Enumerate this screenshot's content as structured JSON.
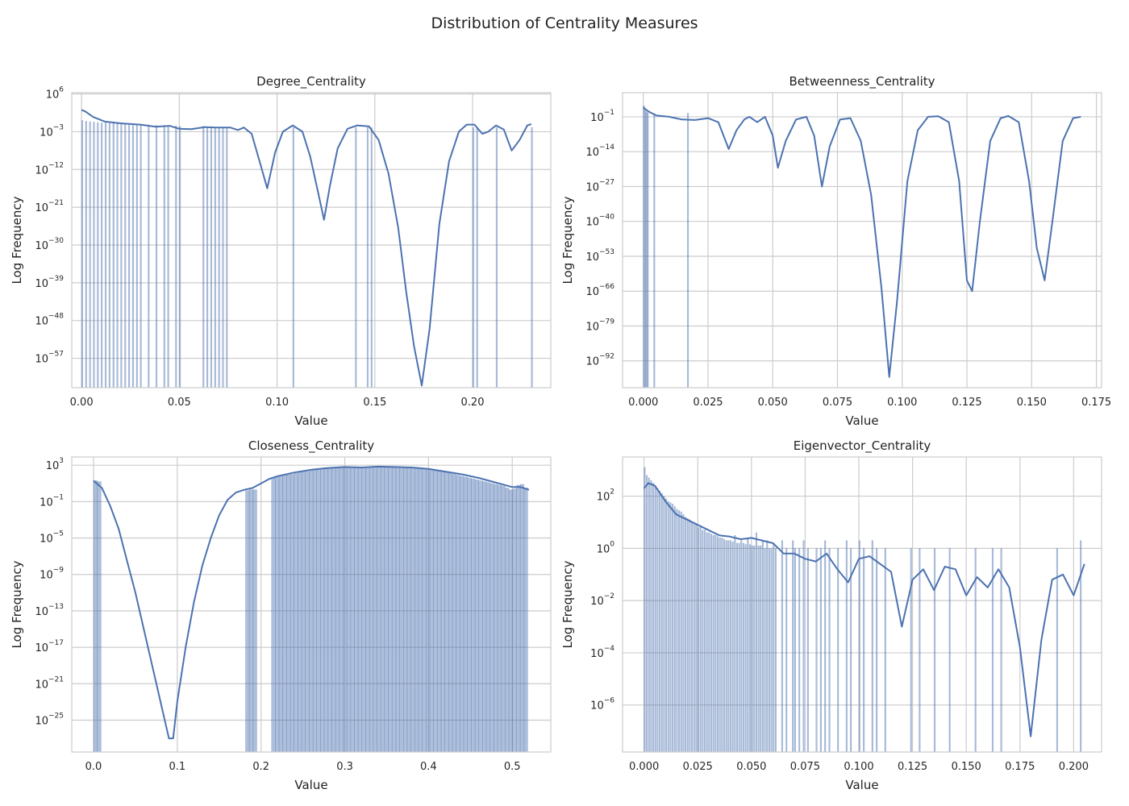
{
  "figure": {
    "title": "Distribution of Centrality Measures"
  },
  "chart_data": [
    {
      "type": "histogram",
      "title": "Degree_Centrality",
      "xlabel": "Value",
      "ylabel": "Log Frequency",
      "yscale": "log",
      "xlim": [
        -0.005,
        0.24
      ],
      "x_ticks": [
        "0.00",
        "0.05",
        "0.10",
        "0.15",
        "0.20"
      ],
      "x_tick_values": [
        0,
        0.05,
        0.1,
        0.15,
        0.2
      ],
      "y_ticks": [
        6,
        -3,
        -12,
        -21,
        -30,
        -39,
        -48,
        -57
      ],
      "ylim_log10": [
        -64,
        6.3
      ],
      "grid": true,
      "bins": {
        "x": [
          0.0,
          0.002,
          0.004,
          0.006,
          0.008,
          0.01,
          0.012,
          0.014,
          0.016,
          0.018,
          0.02,
          0.022,
          0.024,
          0.026,
          0.028,
          0.03,
          0.034,
          0.038,
          0.042,
          0.044,
          0.048,
          0.05,
          0.062,
          0.064,
          0.066,
          0.068,
          0.07,
          0.072,
          0.074,
          0.108,
          0.14,
          0.146,
          0.148,
          0.2,
          0.202,
          0.212,
          0.23
        ],
        "log10_count": [
          -0.3,
          -0.5,
          -0.6,
          -0.7,
          -0.8,
          -0.9,
          -0.9,
          -1,
          -1,
          -1.1,
          -1.1,
          -1.1,
          -1.2,
          -1.2,
          -1.3,
          -1.3,
          -1.4,
          -1.5,
          -1.5,
          -1.6,
          -1.6,
          -1.7,
          -1.7,
          -1.8,
          -1.8,
          -1.9,
          -1.9,
          -1.9,
          -2,
          -2,
          -2,
          -2,
          -2,
          -2,
          -2,
          -2,
          -2
        ]
      },
      "kde": {
        "x": [
          0.0,
          0.002,
          0.006,
          0.012,
          0.02,
          0.03,
          0.038,
          0.045,
          0.05,
          0.056,
          0.063,
          0.069,
          0.076,
          0.08,
          0.083,
          0.087,
          0.091,
          0.095,
          0.099,
          0.103,
          0.108,
          0.113,
          0.117,
          0.121,
          0.124,
          0.127,
          0.131,
          0.136,
          0.141,
          0.147,
          0.152,
          0.157,
          0.162,
          0.166,
          0.17,
          0.174,
          0.178,
          0.183,
          0.188,
          0.193,
          0.197,
          0.201,
          0.205,
          0.208,
          0.212,
          0.216,
          0.22,
          0.224,
          0.228,
          0.23
        ],
        "log10_y": [
          2.2,
          1.8,
          0.5,
          -0.6,
          -1.0,
          -1.3,
          -1.8,
          -1.6,
          -2.3,
          -2.4,
          -1.9,
          -2.0,
          -2.0,
          -2.6,
          -2.0,
          -3.5,
          -10.0,
          -16.5,
          -8.0,
          -3.0,
          -1.5,
          -3.0,
          -9.0,
          -17.5,
          -24.0,
          -16.0,
          -7.0,
          -2.3,
          -1.5,
          -1.7,
          -5.0,
          -13.0,
          -26.0,
          -41.0,
          -54.0,
          -63.5,
          -50.0,
          -25.0,
          -10.0,
          -3.0,
          -1.3,
          -1.3,
          -3.5,
          -3.0,
          -1.5,
          -2.5,
          -7.5,
          -5.0,
          -1.5,
          -1.2
        ]
      }
    },
    {
      "type": "histogram",
      "title": "Betweenness_Centrality",
      "xlabel": "Value",
      "ylabel": "Log Frequency",
      "yscale": "log",
      "xlim": [
        -0.008,
        0.177
      ],
      "x_ticks": [
        "0.000",
        "0.025",
        "0.050",
        "0.075",
        "0.100",
        "0.125",
        "0.150",
        "0.175"
      ],
      "x_tick_values": [
        0,
        0.025,
        0.05,
        0.075,
        0.1,
        0.125,
        0.15,
        0.175
      ],
      "y_ticks": [
        -1,
        -14,
        -27,
        -40,
        -53,
        -66,
        -79,
        -92
      ],
      "ylim_log10": [
        -102,
        8
      ],
      "grid": true,
      "bins": {
        "x": [
          0.0,
          0.0005,
          0.001,
          0.0015,
          0.004,
          0.017
        ],
        "log10_count": [
          3.1,
          1.5,
          0.8,
          0.5,
          0.3,
          0.3
        ]
      },
      "kde": {
        "x": [
          0.0,
          0.002,
          0.005,
          0.01,
          0.015,
          0.02,
          0.025,
          0.029,
          0.033,
          0.036,
          0.039,
          0.041,
          0.044,
          0.047,
          0.05,
          0.052,
          0.055,
          0.059,
          0.063,
          0.066,
          0.069,
          0.072,
          0.076,
          0.08,
          0.084,
          0.088,
          0.092,
          0.095,
          0.098,
          0.102,
          0.106,
          0.11,
          0.114,
          0.118,
          0.122,
          0.125,
          0.127,
          0.13,
          0.134,
          0.138,
          0.141,
          0.145,
          0.149,
          0.152,
          0.155,
          0.158,
          0.162,
          0.166,
          0.169
        ],
        "log10_y": [
          2.5,
          1.0,
          -0.5,
          -1.0,
          -2.0,
          -2.2,
          -1.5,
          -3.0,
          -13.0,
          -6.0,
          -2.0,
          -1.0,
          -3.0,
          -1.0,
          -8.0,
          -20.0,
          -10.0,
          -2.0,
          -1.0,
          -8.0,
          -27.0,
          -12.0,
          -2.0,
          -1.5,
          -10.0,
          -30.0,
          -65.0,
          -98.0,
          -70.0,
          -25.0,
          -6.0,
          -1.0,
          -0.8,
          -3.0,
          -25.0,
          -62.0,
          -66.0,
          -40.0,
          -10.0,
          -1.5,
          -0.7,
          -3.0,
          -25.0,
          -50.0,
          -62.0,
          -40.0,
          -10.0,
          -1.5,
          -1.0
        ]
      }
    },
    {
      "type": "histogram",
      "title": "Closeness_Centrality",
      "xlabel": "Value",
      "ylabel": "Log Frequency",
      "yscale": "log",
      "xlim": [
        -0.026,
        0.546
      ],
      "x_ticks": [
        "0.0",
        "0.1",
        "0.2",
        "0.3",
        "0.4",
        "0.5"
      ],
      "x_tick_values": [
        0,
        0.1,
        0.2,
        0.3,
        0.4,
        0.5
      ],
      "y_ticks": [
        3,
        -1,
        -5,
        -9,
        -13,
        -17,
        -21,
        -25
      ],
      "ylim_log10": [
        -28.5,
        3.9
      ],
      "grid": true,
      "bins": {
        "width": 0.0045,
        "x": [
          0.0,
          0.0045,
          0.1815,
          0.186,
          0.1905,
          0.2125,
          0.217,
          0.2215,
          0.226,
          0.2305,
          0.235,
          0.2395,
          0.244,
          0.2485,
          0.253,
          0.2575,
          0.262,
          0.2665,
          0.271,
          0.2755,
          0.28,
          0.2845,
          0.289,
          0.2935,
          0.298,
          0.3025,
          0.307,
          0.3115,
          0.316,
          0.3205,
          0.325,
          0.3295,
          0.334,
          0.3385,
          0.343,
          0.3475,
          0.352,
          0.3565,
          0.361,
          0.3655,
          0.37,
          0.3745,
          0.379,
          0.3835,
          0.388,
          0.3925,
          0.397,
          0.4015,
          0.406,
          0.4105,
          0.415,
          0.4195,
          0.424,
          0.4285,
          0.433,
          0.4375,
          0.442,
          0.4465,
          0.451,
          0.4555,
          0.46,
          0.4645,
          0.469,
          0.4735,
          0.478,
          0.4825,
          0.487,
          0.4915,
          0.496,
          0.5005,
          0.505,
          0.5095,
          0.514
        ],
        "log10_count": [
          1.3,
          1.2,
          0.2,
          0.3,
          0.3,
          1.6,
          1.7,
          1.8,
          1.9,
          1.95,
          2.0,
          2.1,
          2.2,
          2.25,
          2.3,
          2.4,
          2.5,
          2.55,
          2.6,
          2.6,
          2.65,
          2.7,
          2.7,
          2.75,
          2.75,
          2.8,
          2.8,
          2.8,
          2.8,
          2.8,
          2.8,
          2.8,
          2.8,
          2.8,
          2.8,
          2.8,
          2.8,
          2.75,
          2.75,
          2.75,
          2.7,
          2.7,
          2.7,
          2.65,
          2.6,
          2.55,
          2.5,
          2.45,
          2.4,
          2.35,
          2.3,
          2.2,
          2.1,
          2.0,
          1.9,
          1.8,
          1.7,
          1.6,
          1.5,
          1.4,
          1.3,
          1.2,
          1.1,
          1.0,
          0.9,
          0.8,
          0.7,
          0.5,
          0.3,
          0.4,
          0.8,
          0.9,
          0.5
        ]
      },
      "kde": {
        "x": [
          0.0,
          0.01,
          0.02,
          0.03,
          0.04,
          0.05,
          0.06,
          0.07,
          0.08,
          0.09,
          0.095,
          0.1,
          0.11,
          0.12,
          0.13,
          0.14,
          0.15,
          0.16,
          0.17,
          0.18,
          0.19,
          0.2,
          0.21,
          0.22,
          0.24,
          0.26,
          0.28,
          0.3,
          0.32,
          0.34,
          0.36,
          0.38,
          0.4,
          0.42,
          0.44,
          0.46,
          0.48,
          0.5,
          0.51,
          0.52
        ],
        "log10_y": [
          1.3,
          0.5,
          -1.5,
          -4.0,
          -7.5,
          -11.0,
          -15.0,
          -19.0,
          -23.0,
          -27.0,
          -27.0,
          -23.0,
          -17.0,
          -12.0,
          -8.0,
          -5.0,
          -2.5,
          -0.8,
          0.0,
          0.3,
          0.5,
          1.0,
          1.5,
          1.8,
          2.2,
          2.5,
          2.7,
          2.8,
          2.75,
          2.85,
          2.8,
          2.75,
          2.6,
          2.3,
          2.0,
          1.6,
          1.1,
          0.6,
          0.6,
          0.3
        ]
      }
    },
    {
      "type": "histogram",
      "title": "Eigenvector_Centrality",
      "xlabel": "Value",
      "ylabel": "Log Frequency",
      "yscale": "log",
      "xlim": [
        -0.01,
        0.213
      ],
      "x_ticks": [
        "0.000",
        "0.025",
        "0.050",
        "0.075",
        "0.100",
        "0.125",
        "0.150",
        "0.175",
        "0.200"
      ],
      "x_tick_values": [
        0,
        0.025,
        0.05,
        0.075,
        0.1,
        0.125,
        0.15,
        0.175,
        0.2
      ],
      "y_ticks": [
        2,
        0,
        -2,
        -4,
        -6
      ],
      "ylim_log10": [
        -7.8,
        3.5
      ],
      "grid": true,
      "bins": {
        "x": [
          0.0,
          0.001,
          0.002,
          0.003,
          0.004,
          0.005,
          0.006,
          0.007,
          0.008,
          0.009,
          0.01,
          0.011,
          0.012,
          0.013,
          0.014,
          0.015,
          0.016,
          0.017,
          0.018,
          0.019,
          0.02,
          0.021,
          0.022,
          0.023,
          0.024,
          0.025,
          0.026,
          0.027,
          0.028,
          0.029,
          0.03,
          0.031,
          0.032,
          0.033,
          0.034,
          0.035,
          0.036,
          0.037,
          0.038,
          0.039,
          0.04,
          0.041,
          0.042,
          0.043,
          0.044,
          0.045,
          0.046,
          0.047,
          0.048,
          0.049,
          0.05,
          0.051,
          0.052,
          0.053,
          0.054,
          0.055,
          0.056,
          0.057,
          0.058,
          0.059,
          0.06,
          0.061,
          0.064,
          0.066,
          0.069,
          0.07,
          0.072,
          0.074,
          0.076,
          0.08,
          0.082,
          0.084,
          0.086,
          0.09,
          0.094,
          0.096,
          0.1,
          0.102,
          0.106,
          0.108,
          0.112,
          0.124,
          0.128,
          0.135,
          0.142,
          0.154,
          0.162,
          0.166,
          0.192,
          0.203
        ],
        "log10_count": [
          3.1,
          2.8,
          2.7,
          2.6,
          2.5,
          2.4,
          2.3,
          2.2,
          2.1,
          2.0,
          1.9,
          1.8,
          1.75,
          1.7,
          1.6,
          1.5,
          1.45,
          1.4,
          1.3,
          1.2,
          1.15,
          1.1,
          1.0,
          1.0,
          0.9,
          0.8,
          0.8,
          0.7,
          0.7,
          0.6,
          0.6,
          0.55,
          0.5,
          0.5,
          0.45,
          0.4,
          0.4,
          0.35,
          0.3,
          0.3,
          0.3,
          0.25,
          0.5,
          0.2,
          0.2,
          0.3,
          0.2,
          0.15,
          0.4,
          0.15,
          0.1,
          0.1,
          0.6,
          0.1,
          0.1,
          0.3,
          0.0,
          0.3,
          0.0,
          0.0,
          0.2,
          0.0,
          0.3,
          0.0,
          0.3,
          0.0,
          0.0,
          0.3,
          0.0,
          0.0,
          0.0,
          0.3,
          0.0,
          0.0,
          0.3,
          0.0,
          0.3,
          0.0,
          0.3,
          0.0,
          0.0,
          0.0,
          0.0,
          0.0,
          0.0,
          0.0,
          0.0,
          0.0,
          0.0,
          0.3
        ]
      },
      "kde": {
        "x": [
          0.0,
          0.002,
          0.005,
          0.01,
          0.015,
          0.02,
          0.025,
          0.03,
          0.035,
          0.04,
          0.045,
          0.05,
          0.055,
          0.06,
          0.065,
          0.07,
          0.075,
          0.08,
          0.085,
          0.09,
          0.095,
          0.1,
          0.105,
          0.11,
          0.115,
          0.12,
          0.125,
          0.13,
          0.135,
          0.14,
          0.145,
          0.15,
          0.155,
          0.16,
          0.165,
          0.17,
          0.175,
          0.18,
          0.185,
          0.19,
          0.195,
          0.2,
          0.205
        ],
        "log10_y": [
          2.3,
          2.5,
          2.4,
          1.8,
          1.3,
          1.1,
          0.9,
          0.7,
          0.5,
          0.45,
          0.35,
          0.4,
          0.3,
          0.2,
          -0.2,
          -0.2,
          -0.4,
          -0.5,
          -0.2,
          -0.8,
          -1.3,
          -0.4,
          -0.3,
          -0.6,
          -0.9,
          -3.0,
          -1.2,
          -0.8,
          -1.6,
          -0.7,
          -0.8,
          -1.8,
          -1.1,
          -1.5,
          -0.8,
          -1.5,
          -3.8,
          -7.2,
          -3.5,
          -1.2,
          -1.0,
          -1.8,
          -0.6
        ]
      }
    }
  ]
}
